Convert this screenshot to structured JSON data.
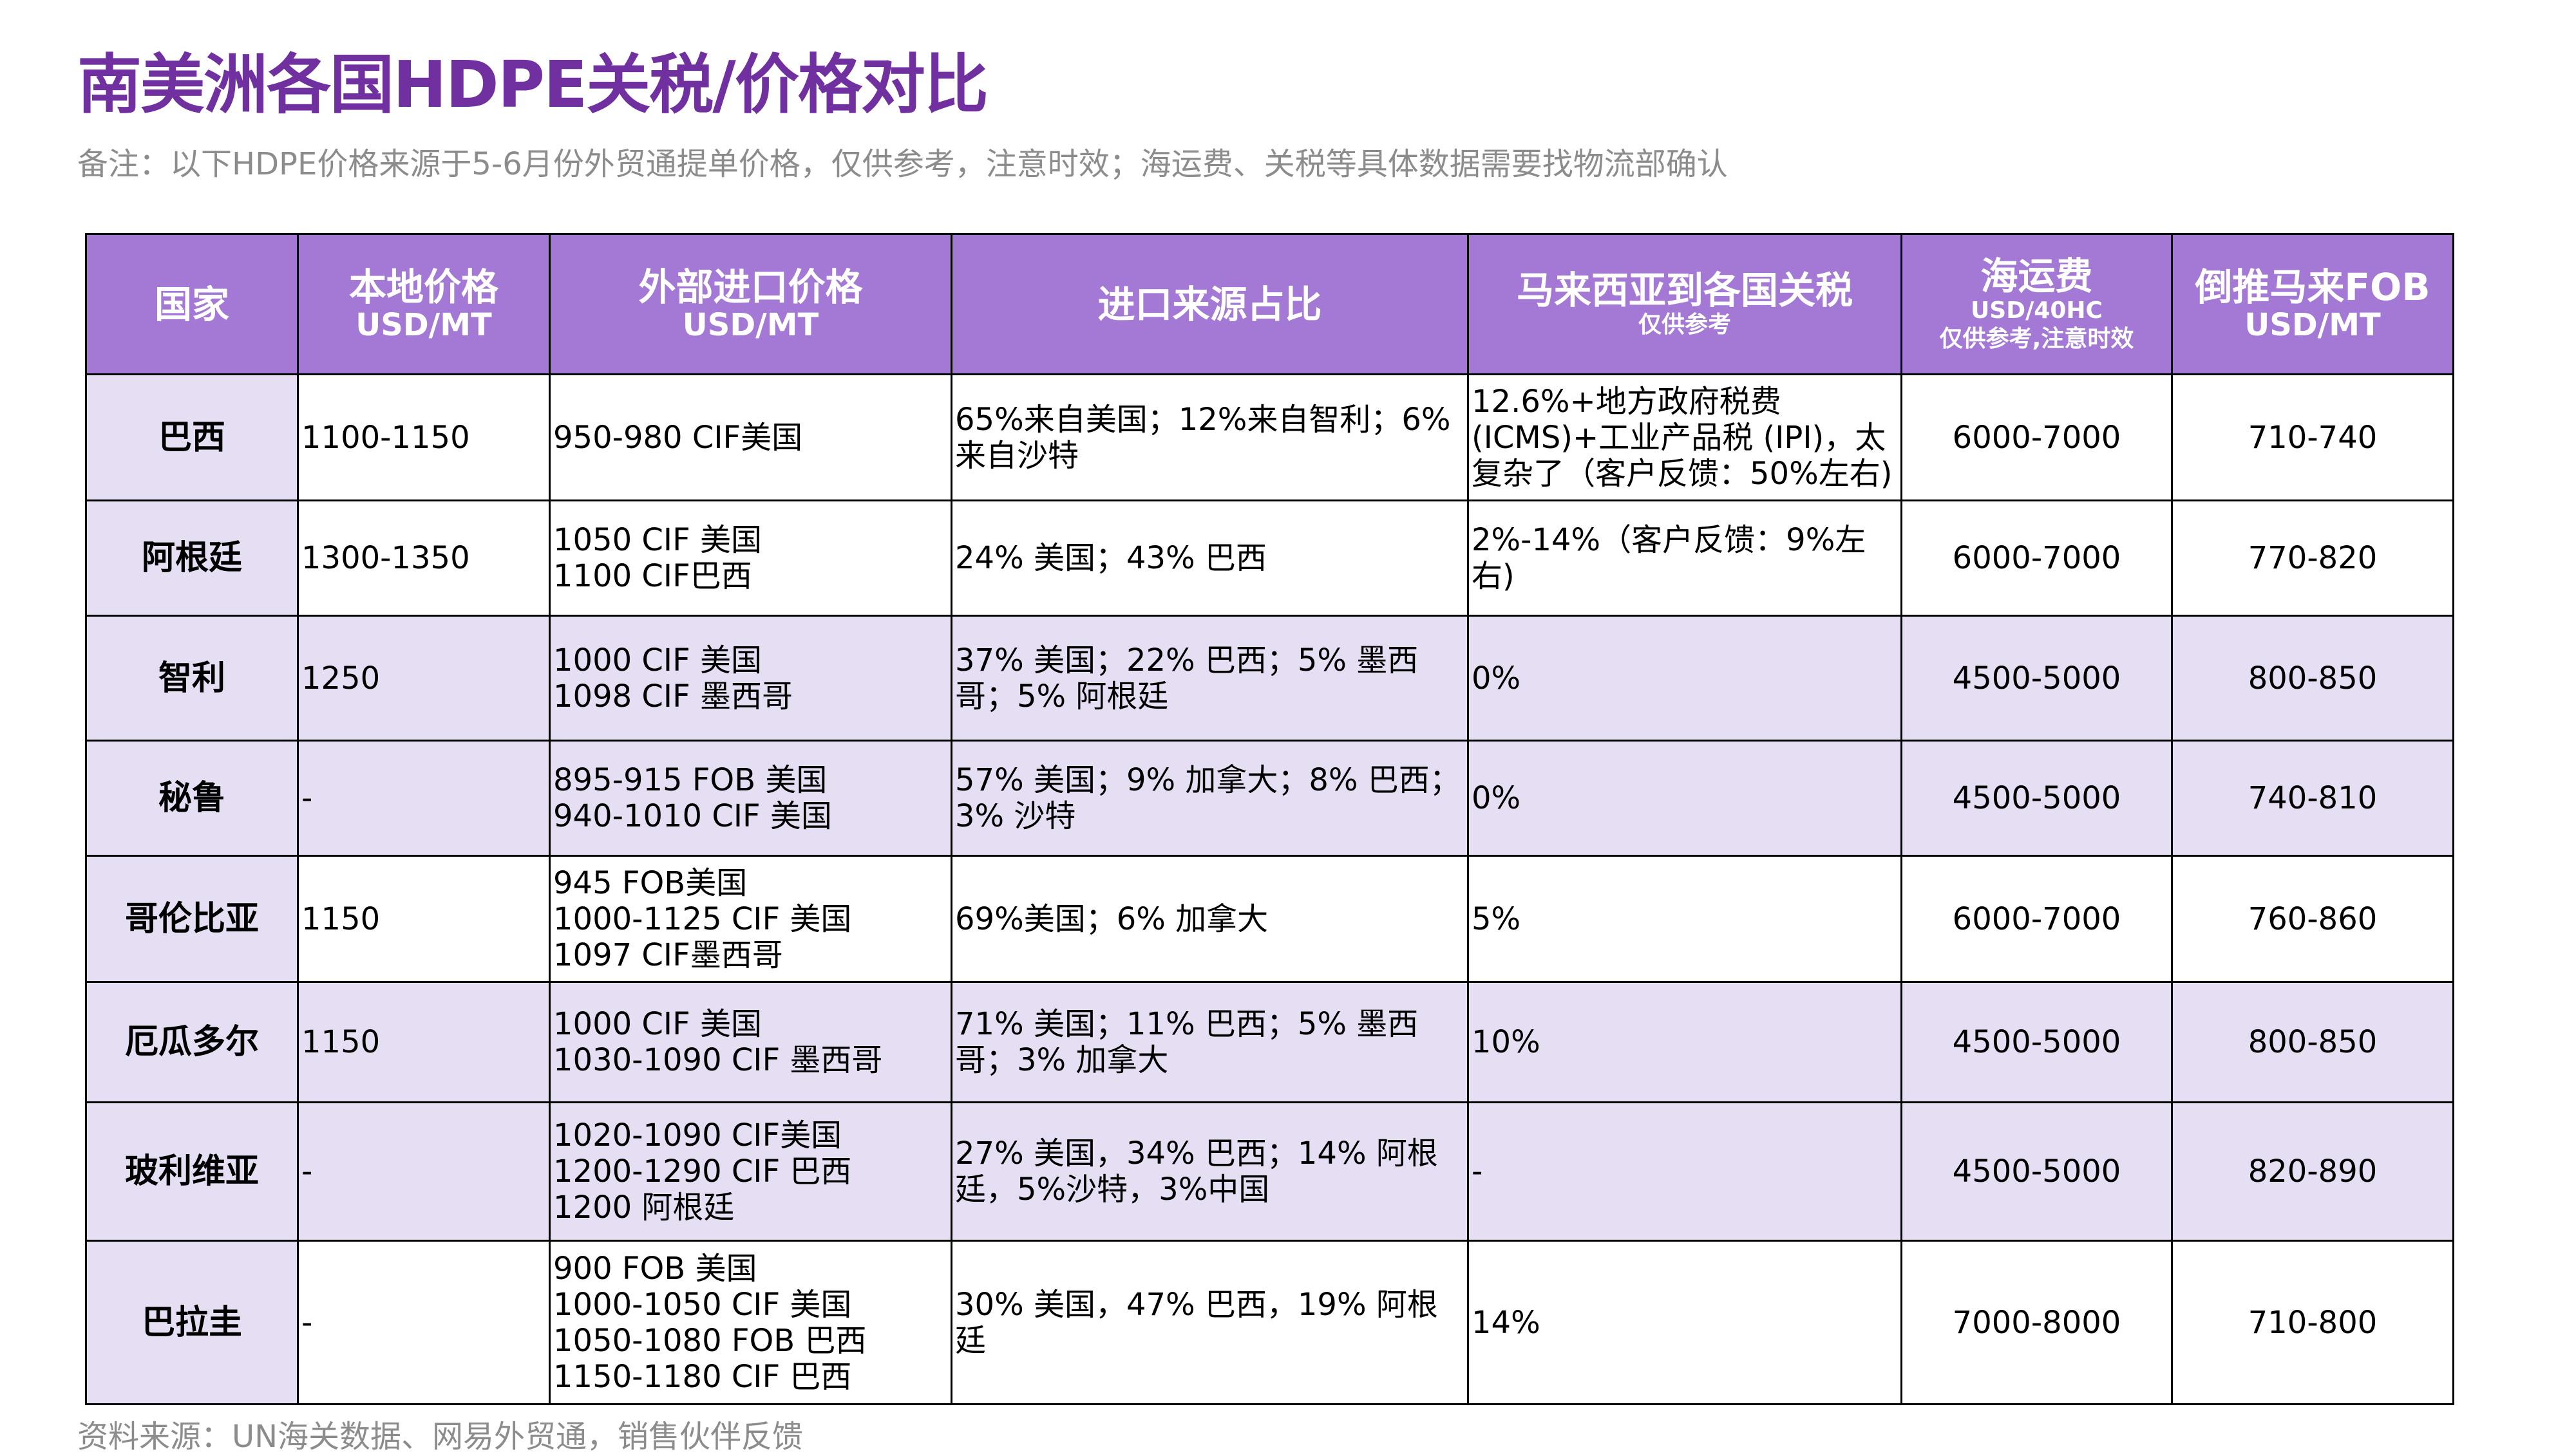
{
  "title": "南美洲各国HDPE关税/价格对比",
  "note": "备注：以下HDPE价格来源于5-6月份外贸通提单价格，仅供参考，注意时效；海运费、关税等具体数据需要找物流部确认",
  "table": {
    "header": [
      [
        "国家"
      ],
      [
        "本地价格",
        "USD/MT"
      ],
      [
        "外部进口价格",
        "USD/MT"
      ],
      [
        "进口来源占比"
      ],
      [
        "马来西亚到各国关税",
        "仅供参考"
      ],
      [
        "海运费",
        "USD/40HC",
        "仅供参考,注意时效"
      ],
      [
        "倒推马来FOB",
        "USD/MT"
      ]
    ],
    "rows": [
      [
        [
          "巴西"
        ],
        [
          "1100-1150"
        ],
        [
          "950-980 CIF美国"
        ],
        [
          "65%来自美国；12%来自智利；6%来自沙特"
        ],
        [
          "12.6%+地方政府税费 (ICMS)+工业产品税 (IPI)，太复杂了（客户反馈：50%左右)"
        ],
        [
          "6000-7000"
        ],
        [
          "710-740"
        ]
      ],
      [
        [
          "阿根廷"
        ],
        [
          "1300-1350"
        ],
        [
          "1050 CIF 美国",
          "1100 CIF巴西"
        ],
        [
          "24% 美国；43% 巴西"
        ],
        [
          "2%-14%（客户反馈：9%左右)"
        ],
        [
          "6000-7000"
        ],
        [
          "770-820"
        ]
      ],
      [
        [
          "智利"
        ],
        [
          "1250"
        ],
        [
          "1000 CIF 美国",
          "1098 CIF 墨西哥"
        ],
        [
          "37% 美国；22% 巴西；5% 墨西哥；5% 阿根廷"
        ],
        [
          "0%"
        ],
        [
          "4500-5000"
        ],
        [
          "800-850"
        ]
      ],
      [
        [
          "秘鲁"
        ],
        [
          "-"
        ],
        [
          "895-915 FOB 美国",
          "940-1010 CIF 美国"
        ],
        [
          "57% 美国；9% 加拿大；8% 巴西；3% 沙特"
        ],
        [
          "0%"
        ],
        [
          "4500-5000"
        ],
        [
          "740-810"
        ]
      ],
      [
        [
          "哥伦比亚"
        ],
        [
          "1150"
        ],
        [
          "945 FOB美国",
          "1000-1125 CIF 美国",
          "1097 CIF墨西哥"
        ],
        [
          "69%美国；6% 加拿大"
        ],
        [
          "5%"
        ],
        [
          "6000-7000"
        ],
        [
          "760-860"
        ]
      ],
      [
        [
          "厄瓜多尔"
        ],
        [
          "1150"
        ],
        [
          "1000 CIF 美国",
          "1030-1090 CIF 墨西哥"
        ],
        [
          "71% 美国；11% 巴西；5% 墨西哥；3% 加拿大"
        ],
        [
          "10%"
        ],
        [
          "4500-5000"
        ],
        [
          "800-850"
        ]
      ],
      [
        [
          "玻利维亚"
        ],
        [
          "-"
        ],
        [
          "1020-1090 CIF美国",
          "1200-1290 CIF 巴西",
          "1200 阿根廷"
        ],
        [
          "27% 美国，34% 巴西；14% 阿根廷，5%沙特，3%中国"
        ],
        [
          "-"
        ],
        [
          "4500-5000"
        ],
        [
          "820-890"
        ]
      ],
      [
        [
          "巴拉圭"
        ],
        [
          "-"
        ],
        [
          "900 FOB 美国",
          "1000-1050 CIF 美国",
          "1050-1080 FOB 巴西",
          "1150-1180 CIF 巴西"
        ],
        [
          "30% 美国，47% 巴西，19% 阿根廷"
        ],
        [
          "14%"
        ],
        [
          "7000-8000"
        ],
        [
          "710-800"
        ]
      ]
    ]
  },
  "source": "资料来源：UN海关数据、网易外贸通，销售伙伴反馈"
}
